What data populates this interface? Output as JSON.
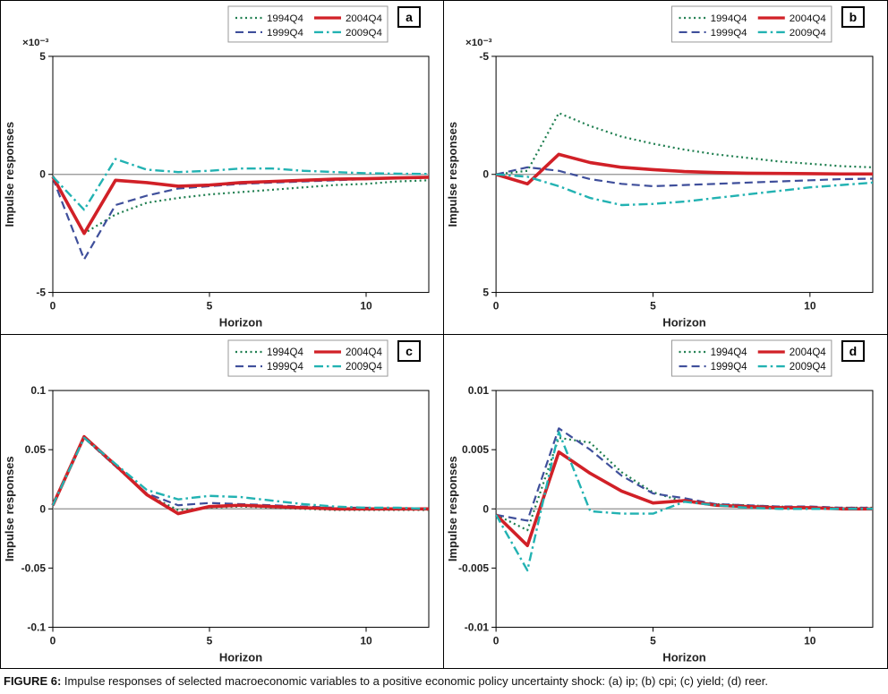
{
  "caption": {
    "prefix": "FIGURE 6:",
    "text": " Impulse responses of selected macroeconomic variables to a positive economic policy uncertainty shock: (a) ip; (b) cpi; (c) yield; (d) reer."
  },
  "colors": {
    "green_1994": "#1e7e4f",
    "blue_1999": "#3f4f9b",
    "red_2004": "#d12027",
    "teal_2009": "#22b2b2",
    "zero_line": "#909090",
    "axis": "#000000"
  },
  "chart_data": [
    {
      "type": "line",
      "panel_label": "a",
      "variable": "ip",
      "title": "",
      "xlabel": "Horizon",
      "ylabel": "Impulse responses",
      "y_scale_note": "×10⁻³",
      "legend_position": "top-right",
      "grid": false,
      "x": [
        0,
        1,
        2,
        3,
        4,
        5,
        6,
        7,
        8,
        9,
        10,
        11,
        12
      ],
      "xlim": [
        0,
        12
      ],
      "xtick_values": [
        0,
        5,
        10
      ],
      "xtick_labels": [
        "0",
        "5",
        "10"
      ],
      "ylim": [
        -5,
        5
      ],
      "ytick_values": [
        5,
        0,
        -5
      ],
      "ytick_labels": [
        "5",
        "0",
        "-5"
      ],
      "series": [
        {
          "name": "1994Q4",
          "style": "dotted",
          "color_key": "green_1994",
          "values": [
            -0.1,
            -2.5,
            -1.7,
            -1.2,
            -1.0,
            -0.85,
            -0.75,
            -0.65,
            -0.55,
            -0.45,
            -0.4,
            -0.3,
            -0.25
          ]
        },
        {
          "name": "1999Q4",
          "style": "dashed",
          "color_key": "blue_1999",
          "values": [
            -0.15,
            -3.6,
            -1.3,
            -0.9,
            -0.6,
            -0.5,
            -0.4,
            -0.35,
            -0.3,
            -0.25,
            -0.2,
            -0.15,
            -0.12
          ]
        },
        {
          "name": "2004Q4",
          "style": "solid",
          "color_key": "red_2004",
          "values": [
            -0.1,
            -2.5,
            -0.25,
            -0.35,
            -0.5,
            -0.45,
            -0.35,
            -0.3,
            -0.25,
            -0.2,
            -0.18,
            -0.15,
            -0.12
          ]
        },
        {
          "name": "2009Q4",
          "style": "dashdot",
          "color_key": "teal_2009",
          "values": [
            -0.1,
            -1.5,
            0.65,
            0.2,
            0.1,
            0.15,
            0.25,
            0.25,
            0.15,
            0.1,
            0.05,
            0.03,
            0.02
          ]
        }
      ]
    },
    {
      "type": "line",
      "panel_label": "b",
      "variable": "cpi",
      "title": "",
      "xlabel": "Horizon",
      "ylabel": "Impulse responses",
      "y_scale_note": "×10⁻³",
      "legend_position": "top-right",
      "grid": false,
      "x": [
        0,
        1,
        2,
        3,
        4,
        5,
        6,
        7,
        8,
        9,
        10,
        11,
        12
      ],
      "xlim": [
        0,
        12
      ],
      "xtick_values": [
        0,
        5,
        10
      ],
      "xtick_labels": [
        "0",
        "5",
        "10"
      ],
      "ylim": [
        5,
        -5
      ],
      "ytick_values": [
        -5,
        0,
        5
      ],
      "ytick_labels": [
        "-5",
        "0",
        "5"
      ],
      "series": [
        {
          "name": "1994Q4",
          "style": "dotted",
          "color_key": "green_1994",
          "values": [
            0,
            -0.15,
            -2.6,
            -2.05,
            -1.6,
            -1.3,
            -1.05,
            -0.85,
            -0.7,
            -0.55,
            -0.45,
            -0.35,
            -0.3
          ]
        },
        {
          "name": "1999Q4",
          "style": "dashed",
          "color_key": "blue_1999",
          "values": [
            0,
            -0.3,
            -0.15,
            0.2,
            0.4,
            0.5,
            0.45,
            0.4,
            0.35,
            0.3,
            0.25,
            0.2,
            0.18
          ]
        },
        {
          "name": "2004Q4",
          "style": "solid",
          "color_key": "red_2004",
          "values": [
            0,
            0.4,
            -0.85,
            -0.5,
            -0.3,
            -0.2,
            -0.12,
            -0.08,
            -0.05,
            -0.04,
            -0.03,
            -0.02,
            -0.02
          ]
        },
        {
          "name": "2009Q4",
          "style": "dashdot",
          "color_key": "teal_2009",
          "values": [
            0,
            0.1,
            0.5,
            1.0,
            1.3,
            1.25,
            1.15,
            1.0,
            0.85,
            0.7,
            0.55,
            0.45,
            0.35
          ]
        }
      ]
    },
    {
      "type": "line",
      "panel_label": "c",
      "variable": "yield",
      "title": "",
      "xlabel": "Horizon",
      "ylabel": "Impulse responses",
      "y_scale_note": "",
      "legend_position": "top-right",
      "grid": false,
      "x": [
        0,
        1,
        2,
        3,
        4,
        5,
        6,
        7,
        8,
        9,
        10,
        11,
        12
      ],
      "xlim": [
        0,
        12
      ],
      "xtick_values": [
        0,
        5,
        10
      ],
      "xtick_labels": [
        "0",
        "5",
        "10"
      ],
      "ylim": [
        -0.1,
        0.1
      ],
      "ytick_values": [
        0.1,
        0.05,
        0,
        -0.05,
        -0.1
      ],
      "ytick_labels": [
        "0.1",
        "0.05",
        "0",
        "-0.05",
        "-0.1"
      ],
      "series": [
        {
          "name": "1994Q4",
          "style": "dotted",
          "color_key": "green_1994",
          "values": [
            0.003,
            0.06,
            0.036,
            0.012,
            -0.001,
            0.001,
            0.002,
            0.001,
            0.0,
            -0.001,
            -0.001,
            -0.001,
            -0.001
          ]
        },
        {
          "name": "1999Q4",
          "style": "dashed",
          "color_key": "blue_1999",
          "values": [
            0.003,
            0.06,
            0.036,
            0.013,
            0.003,
            0.005,
            0.004,
            0.003,
            0.002,
            0.001,
            0.001,
            0.0,
            0.0
          ]
        },
        {
          "name": "2004Q4",
          "style": "solid",
          "color_key": "red_2004",
          "values": [
            0.003,
            0.061,
            0.037,
            0.012,
            -0.004,
            0.002,
            0.003,
            0.002,
            0.001,
            0.0,
            0.0,
            0.0,
            0.0
          ]
        },
        {
          "name": "2009Q4",
          "style": "dashdot",
          "color_key": "teal_2009",
          "values": [
            0.003,
            0.06,
            0.038,
            0.016,
            0.008,
            0.011,
            0.01,
            0.007,
            0.004,
            0.002,
            0.001,
            0.001,
            0.0
          ]
        }
      ]
    },
    {
      "type": "line",
      "panel_label": "d",
      "variable": "reer",
      "title": "",
      "xlabel": "Horizon",
      "ylabel": "Impulse responses",
      "y_scale_note": "",
      "legend_position": "top-right",
      "grid": false,
      "x": [
        0,
        1,
        2,
        3,
        4,
        5,
        6,
        7,
        8,
        9,
        10,
        11,
        12
      ],
      "xlim": [
        0,
        12
      ],
      "xtick_values": [
        0,
        5,
        10
      ],
      "xtick_labels": [
        "0",
        "5",
        "10"
      ],
      "ylim": [
        -0.01,
        0.01
      ],
      "ytick_values": [
        0.01,
        0.005,
        0,
        -0.005,
        -0.01
      ],
      "ytick_labels": [
        "0.01",
        "0.005",
        "0",
        "-0.005",
        "-0.01"
      ],
      "series": [
        {
          "name": "1994Q4",
          "style": "dotted",
          "color_key": "green_1994",
          "values": [
            -0.0005,
            -0.0018,
            0.006,
            0.0056,
            0.0031,
            0.0014,
            0.0006,
            0.0004,
            0.0003,
            0.0002,
            0.0001,
            0.0001,
            0.0001
          ]
        },
        {
          "name": "1999Q4",
          "style": "dashed",
          "color_key": "blue_1999",
          "values": [
            -0.0005,
            -0.001,
            0.0068,
            0.005,
            0.0028,
            0.0013,
            0.0009,
            0.0004,
            0.0003,
            0.0002,
            0.0002,
            0.0001,
            0.0001
          ]
        },
        {
          "name": "2004Q4",
          "style": "solid",
          "color_key": "red_2004",
          "values": [
            -0.0005,
            -0.0031,
            0.0048,
            0.003,
            0.0015,
            0.0005,
            0.0007,
            0.0003,
            0.0002,
            0.0001,
            0.0001,
            0.0,
            0.0
          ]
        },
        {
          "name": "2009Q4",
          "style": "dashdot",
          "color_key": "teal_2009",
          "values": [
            -0.0005,
            -0.0052,
            0.0065,
            -0.0002,
            -0.0004,
            -0.0004,
            0.0006,
            0.0003,
            0.0001,
            0.0,
            0.0,
            0.0,
            0.0
          ]
        }
      ]
    }
  ]
}
